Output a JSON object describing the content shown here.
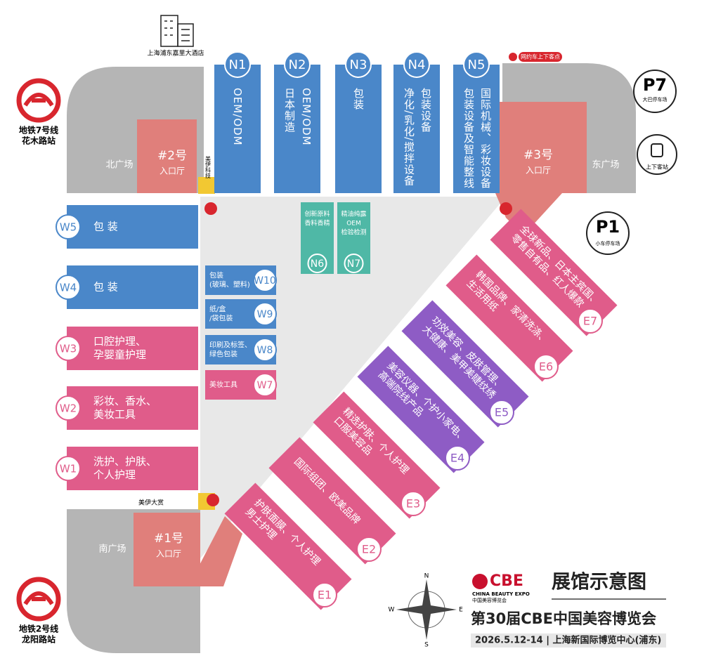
{
  "title": "展馆示意图",
  "subtitle": "第30届CBE中国美容博览会",
  "info": "2026.5.12-14 | 上海新国际博览中心(浦东)",
  "brand": {
    "logo": "CBE",
    "en": "CHINA BEAUTY EXPO",
    "cn": "中国美容博览会"
  },
  "halls": [
    {
      "id": "N1",
      "lines": [
        "OEM/ODM"
      ]
    },
    {
      "id": "N2",
      "lines": [
        "OEM/ODM",
        "日本制造"
      ]
    },
    {
      "id": "N3",
      "lines": [
        "包装"
      ]
    },
    {
      "id": "N4",
      "lines": [
        "包装设备",
        "净化/乳化/搅拌设备"
      ]
    },
    {
      "id": "N5",
      "lines": [
        "国际机械、彩妆设备",
        "包装设备及智能整线"
      ]
    },
    {
      "id": "N6",
      "lines": [
        "创新原料",
        "香料香精"
      ]
    },
    {
      "id": "N7",
      "lines": [
        "精油纯露",
        "OEM",
        "检验检测"
      ]
    },
    {
      "id": "W5",
      "lines": [
        "包 装"
      ]
    },
    {
      "id": "W4",
      "lines": [
        "包 装"
      ]
    },
    {
      "id": "W3",
      "lines": [
        "口腔护理、",
        "孕婴童护理"
      ]
    },
    {
      "id": "W2",
      "lines": [
        "彩妆、香水、",
        "美妆工具"
      ]
    },
    {
      "id": "W1",
      "lines": [
        "洗护、护肤、",
        "个人护理"
      ]
    },
    {
      "id": "W10",
      "lines": [
        "包装",
        "(玻璃、塑料)"
      ]
    },
    {
      "id": "W9",
      "lines": [
        "纸/盒",
        "/袋包装"
      ]
    },
    {
      "id": "W8",
      "lines": [
        "印刷及标签、",
        "绿色包装"
      ]
    },
    {
      "id": "W7",
      "lines": [
        "美妆工具"
      ]
    },
    {
      "id": "E1",
      "lines": [
        "护肤面膜、个人护理",
        "男士护理"
      ]
    },
    {
      "id": "E2",
      "lines": [
        "国际组团、欧美品牌"
      ]
    },
    {
      "id": "E3",
      "lines": [
        "精选护肤、个人护理",
        "口服美容品"
      ]
    },
    {
      "id": "E4",
      "lines": [
        "美容仪器、个护小家电、",
        "高端院线产品"
      ]
    },
    {
      "id": "E5",
      "lines": [
        "功效美容、皮肤管理、",
        "大健康、美甲美睫纹绣"
      ]
    },
    {
      "id": "E6",
      "lines": [
        "韩国品牌、家清洗涤、",
        "生活用纸"
      ]
    },
    {
      "id": "E7",
      "lines": [
        "全球新品、日本主宾国、",
        "零售自有品、红人爆款"
      ]
    }
  ],
  "entrances": [
    {
      "name": "#2号",
      "sub": "入口厅"
    },
    {
      "name": "#3号",
      "sub": "入口厅"
    },
    {
      "name": "#1号",
      "sub": "入口厅"
    }
  ],
  "plazas": [
    "北广场",
    "东广场",
    "南广场"
  ],
  "metro": [
    {
      "line": "地铁7号线",
      "station": "花木路站"
    },
    {
      "line": "地铁2号线",
      "station": "龙阳路站"
    }
  ],
  "hotel": "上海浦东嘉里大酒店",
  "parking": [
    {
      "id": "P7",
      "label": "大巴停车场"
    },
    {
      "id": "P1",
      "label": "小车停车场"
    }
  ],
  "bus_station": "上下客站",
  "ride_hailing": "网约车上下客点",
  "sponsors": [
    "美伊科技",
    "美伊大赏"
  ],
  "compass": {
    "n": "N",
    "s": "S",
    "e": "E",
    "w": "W"
  }
}
